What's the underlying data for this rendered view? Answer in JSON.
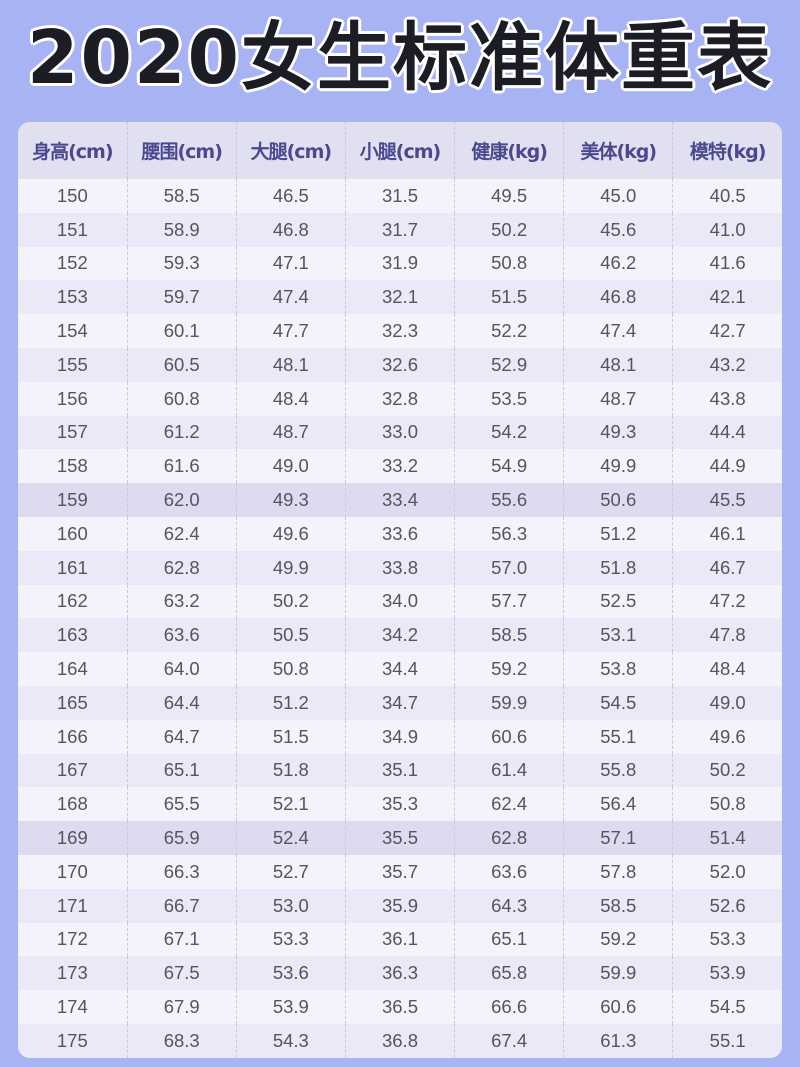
{
  "title": "2020女生标准体重表",
  "colors": {
    "background": "#a8b3f4",
    "header_text": "#4a4990",
    "highlight_row": "#dcdbef"
  },
  "table": {
    "headers": [
      "身高(cm)",
      "腰围(cm)",
      "大腿(cm)",
      "小腿(cm)",
      "健康(kg)",
      "美体(kg)",
      "模特(kg)"
    ],
    "highlighted_heights": [
      "159",
      "169"
    ],
    "rows": [
      [
        "150",
        "58.5",
        "46.5",
        "31.5",
        "49.5",
        "45.0",
        "40.5"
      ],
      [
        "151",
        "58.9",
        "46.8",
        "31.7",
        "50.2",
        "45.6",
        "41.0"
      ],
      [
        "152",
        "59.3",
        "47.1",
        "31.9",
        "50.8",
        "46.2",
        "41.6"
      ],
      [
        "153",
        "59.7",
        "47.4",
        "32.1",
        "51.5",
        "46.8",
        "42.1"
      ],
      [
        "154",
        "60.1",
        "47.7",
        "32.3",
        "52.2",
        "47.4",
        "42.7"
      ],
      [
        "155",
        "60.5",
        "48.1",
        "32.6",
        "52.9",
        "48.1",
        "43.2"
      ],
      [
        "156",
        "60.8",
        "48.4",
        "32.8",
        "53.5",
        "48.7",
        "43.8"
      ],
      [
        "157",
        "61.2",
        "48.7",
        "33.0",
        "54.2",
        "49.3",
        "44.4"
      ],
      [
        "158",
        "61.6",
        "49.0",
        "33.2",
        "54.9",
        "49.9",
        "44.9"
      ],
      [
        "159",
        "62.0",
        "49.3",
        "33.4",
        "55.6",
        "50.6",
        "45.5"
      ],
      [
        "160",
        "62.4",
        "49.6",
        "33.6",
        "56.3",
        "51.2",
        "46.1"
      ],
      [
        "161",
        "62.8",
        "49.9",
        "33.8",
        "57.0",
        "51.8",
        "46.7"
      ],
      [
        "162",
        "63.2",
        "50.2",
        "34.0",
        "57.7",
        "52.5",
        "47.2"
      ],
      [
        "163",
        "63.6",
        "50.5",
        "34.2",
        "58.5",
        "53.1",
        "47.8"
      ],
      [
        "164",
        "64.0",
        "50.8",
        "34.4",
        "59.2",
        "53.8",
        "48.4"
      ],
      [
        "165",
        "64.4",
        "51.2",
        "34.7",
        "59.9",
        "54.5",
        "49.0"
      ],
      [
        "166",
        "64.7",
        "51.5",
        "34.9",
        "60.6",
        "55.1",
        "49.6"
      ],
      [
        "167",
        "65.1",
        "51.8",
        "35.1",
        "61.4",
        "55.8",
        "50.2"
      ],
      [
        "168",
        "65.5",
        "52.1",
        "35.3",
        "62.4",
        "56.4",
        "50.8"
      ],
      [
        "169",
        "65.9",
        "52.4",
        "35.5",
        "62.8",
        "57.1",
        "51.4"
      ],
      [
        "170",
        "66.3",
        "52.7",
        "35.7",
        "63.6",
        "57.8",
        "52.0"
      ],
      [
        "171",
        "66.7",
        "53.0",
        "35.9",
        "64.3",
        "58.5",
        "52.6"
      ],
      [
        "172",
        "67.1",
        "53.3",
        "36.1",
        "65.1",
        "59.2",
        "53.3"
      ],
      [
        "173",
        "67.5",
        "53.6",
        "36.3",
        "65.8",
        "59.9",
        "53.9"
      ],
      [
        "174",
        "67.9",
        "53.9",
        "36.5",
        "66.6",
        "60.6",
        "54.5"
      ],
      [
        "175",
        "68.3",
        "54.3",
        "36.8",
        "67.4",
        "61.3",
        "55.1"
      ]
    ]
  }
}
